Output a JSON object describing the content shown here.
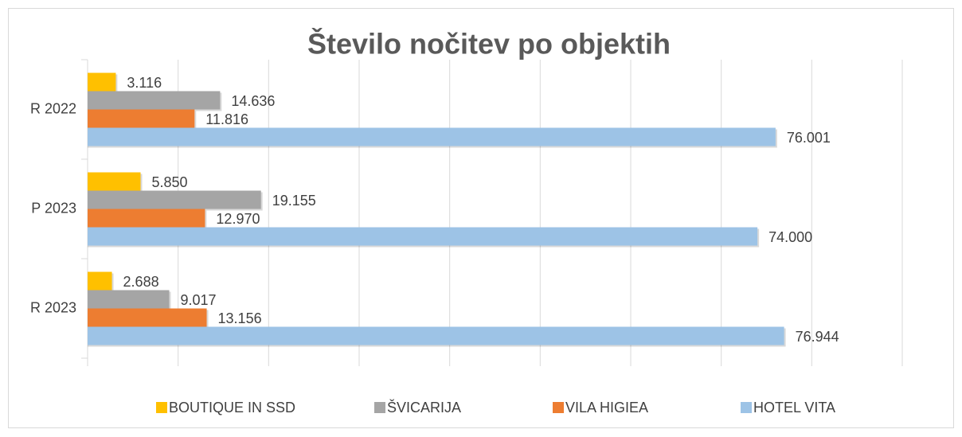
{
  "chart_data": {
    "type": "hbar",
    "title": "Število nočitev po objektih",
    "categories": [
      "R 2022",
      "P 2023",
      "R 2023"
    ],
    "series": [
      {
        "name": "BOUTIQUE IN SSD",
        "color": "#ffc000",
        "values": [
          3116,
          5850,
          2688
        ],
        "value_labels": [
          "3.116",
          "5.850",
          "2.688"
        ]
      },
      {
        "name": "ŠVICARIJA",
        "color": "#a5a5a5",
        "values": [
          14636,
          19155,
          9017
        ],
        "value_labels": [
          "14.636",
          "19.155",
          "9.017"
        ]
      },
      {
        "name": "VILA HIGIEA",
        "color": "#ed7d31",
        "values": [
          11816,
          12970,
          13156
        ],
        "value_labels": [
          "11.816",
          "12.970",
          "13.156"
        ]
      },
      {
        "name": "HOTEL VITA",
        "color": "#9dc3e6",
        "values": [
          76001,
          74000,
          76944
        ],
        "value_labels": [
          "76.001",
          "74.000",
          "76.944"
        ]
      }
    ],
    "xlim": [
      0,
      90000
    ],
    "xticks": [
      0,
      10000,
      20000,
      30000,
      40000,
      50000,
      60000,
      70000,
      80000,
      90000
    ],
    "grid": true,
    "legend": "bottom"
  }
}
